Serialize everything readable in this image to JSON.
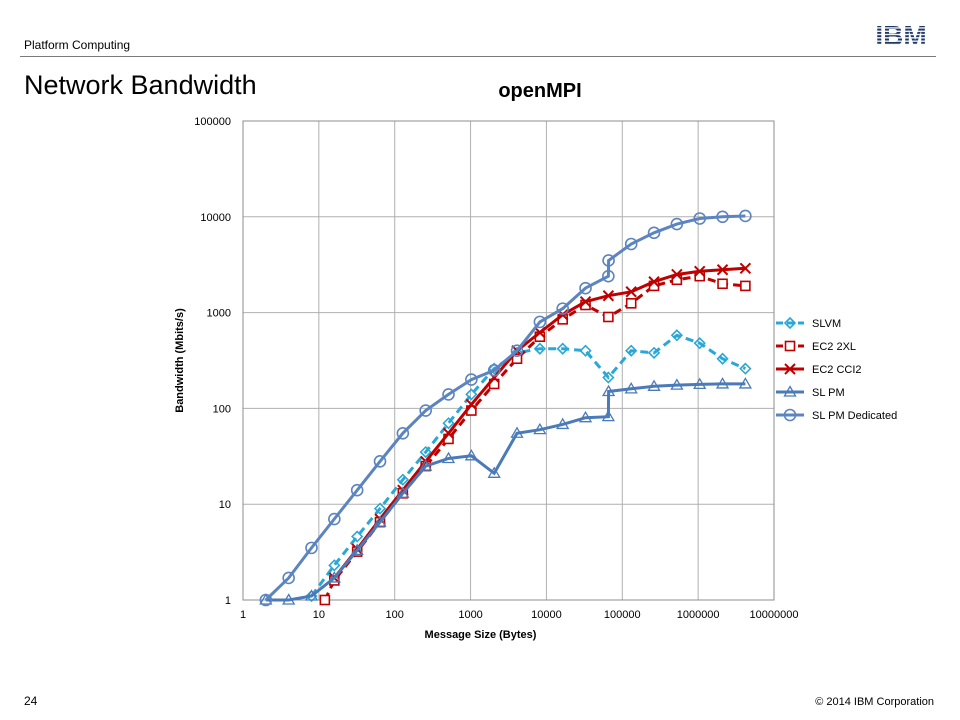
{
  "header": {
    "text": "Platform Computing",
    "logo_text": "IBM"
  },
  "page_title": "Network Bandwidth",
  "footer": {
    "page_number": "24",
    "copyright": "© 2014 IBM Corporation"
  },
  "colors": {
    "slvm": "#29a8d8",
    "ec2_2xl": "#c00000",
    "ec2_cci2": "#c00000",
    "sl_pm": "#4a7ab8",
    "sl_pm_dedicated": "#5b84c0",
    "grid": "#b0b0b0"
  },
  "chart_data": {
    "type": "line",
    "title": "openMPI",
    "xlabel": "Message  Size (Bytes)",
    "ylabel": "Bandwidth  (Mbits/s)",
    "x_scale": "log",
    "y_scale": "log",
    "xlim": [
      1,
      10000000
    ],
    "ylim": [
      1,
      100000
    ],
    "x_ticks": [
      "1",
      "10",
      "100",
      "1000",
      "10000",
      "100000",
      "1000000",
      "10000000"
    ],
    "y_ticks": [
      "1",
      "10",
      "100",
      "1000",
      "10000",
      "100000"
    ],
    "grid": true,
    "legend_position": "right",
    "series": [
      {
        "name": "SLVM",
        "style": "dashed",
        "marker": "diamond",
        "x": [
          8,
          16,
          32,
          64,
          128,
          256,
          512,
          1024,
          2048,
          4096,
          8192,
          16384,
          32768,
          65536,
          131072,
          262144,
          524288,
          1048576,
          2097152,
          4194304
        ],
        "y": [
          1.1,
          2.3,
          4.6,
          9,
          18,
          35,
          70,
          140,
          260,
          380,
          420,
          420,
          400,
          210,
          400,
          380,
          580,
          480,
          330,
          260
        ]
      },
      {
        "name": "EC2 2XL",
        "style": "dashed",
        "marker": "square",
        "x": [
          12,
          16,
          32,
          64,
          128,
          256,
          512,
          1024,
          2048,
          4096,
          8192,
          16384,
          32768,
          65536,
          131072,
          262144,
          524288,
          1048576,
          2097152,
          4194304
        ],
        "y": [
          1.0,
          1.6,
          3.2,
          6.5,
          13,
          25,
          48,
          95,
          180,
          330,
          560,
          850,
          1200,
          900,
          1250,
          1900,
          2200,
          2400,
          2000,
          1900
        ]
      },
      {
        "name": "EC2 CCI2",
        "style": "solid",
        "marker": "x",
        "x": [
          16,
          32,
          64,
          128,
          256,
          512,
          1024,
          2048,
          4096,
          8192,
          16384,
          32768,
          65536,
          131072,
          262144,
          524288,
          1048576,
          2097152,
          4194304
        ],
        "y": [
          1.7,
          3.4,
          7,
          14,
          28,
          55,
          110,
          210,
          400,
          620,
          950,
          1300,
          1500,
          1650,
          2100,
          2500,
          2700,
          2800,
          2900
        ]
      },
      {
        "name": "SL PM",
        "style": "solid",
        "marker": "triangle",
        "x": [
          2,
          4,
          8,
          16,
          32,
          64,
          128,
          256,
          512,
          1024,
          2048,
          4096,
          8192,
          16384,
          32768,
          65536,
          66000,
          131072,
          262144,
          524288,
          1048576,
          2097152,
          4194304
        ],
        "y": [
          1.0,
          1.0,
          1.1,
          1.7,
          3.3,
          6.5,
          13,
          25,
          30,
          32,
          21,
          55,
          60,
          68,
          80,
          82,
          150,
          160,
          170,
          175,
          178,
          180,
          180
        ]
      },
      {
        "name": "SL PM Dedicated",
        "style": "solid",
        "marker": "circle",
        "x": [
          2,
          4,
          8,
          16,
          32,
          64,
          128,
          256,
          512,
          1024,
          2048,
          4096,
          8192,
          16384,
          32768,
          65536,
          66000,
          131072,
          262144,
          524288,
          1048576,
          2097152,
          4194304
        ],
        "y": [
          1.0,
          1.7,
          3.5,
          7,
          14,
          28,
          55,
          95,
          140,
          200,
          250,
          400,
          800,
          1100,
          1800,
          2400,
          3500,
          5200,
          6800,
          8400,
          9600,
          10000,
          10200
        ]
      }
    ]
  }
}
